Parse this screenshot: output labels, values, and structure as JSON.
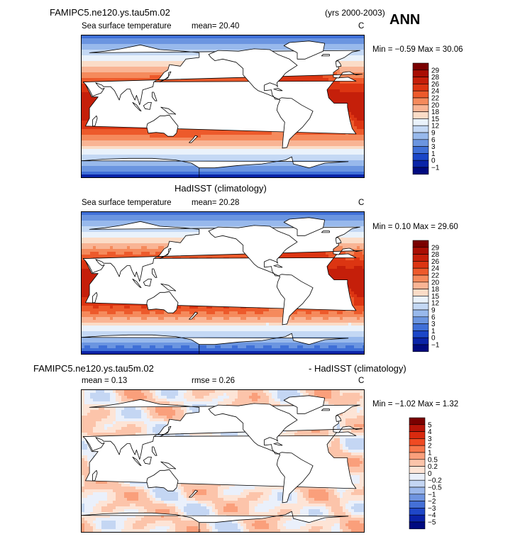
{
  "header": {
    "case_name": "FAMIPC5.ne120.ys.tau5m.02",
    "years": "(yrs 2000-2003)",
    "season": "ANN"
  },
  "panels": [
    {
      "id": "model",
      "title": "",
      "variable": "Sea surface temperature",
      "stats": "mean=   20.40",
      "units": "C",
      "minmax": "Min =   −0.59  Max =    30.06",
      "levels": [
        "29",
        "28",
        "26",
        "24",
        "22",
        "20",
        "18",
        "15",
        "12",
        "9",
        "6",
        "3",
        "1",
        "0",
        "−1"
      ],
      "colors": [
        "#7a0000",
        "#a90e04",
        "#c51f0a",
        "#dc3512",
        "#ed5a2b",
        "#f58a5c",
        "#f9b494",
        "#fbdcc7",
        "#eaf2fb",
        "#c4d8f4",
        "#98b9ec",
        "#6b95e0",
        "#3f6fd7",
        "#1b46c8",
        "#0a24a8",
        "#000a80"
      ]
    },
    {
      "id": "obs",
      "title": "HadISST (climatology)",
      "variable": "Sea surface temperature",
      "stats": "mean=   20.28",
      "units": "C",
      "minmax": "Min =    0.10  Max =    29.60",
      "levels": [
        "29",
        "28",
        "26",
        "24",
        "22",
        "20",
        "18",
        "15",
        "12",
        "9",
        "6",
        "3",
        "1",
        "0",
        "−1"
      ],
      "colors": [
        "#7a0000",
        "#a90e04",
        "#c51f0a",
        "#dc3512",
        "#ed5a2b",
        "#f58a5c",
        "#f9b494",
        "#fbdcc7",
        "#eaf2fb",
        "#c4d8f4",
        "#98b9ec",
        "#6b95e0",
        "#3f6fd7",
        "#1b46c8",
        "#0a24a8",
        "#000a80"
      ]
    },
    {
      "id": "diff",
      "title_left": "FAMIPC5.ne120.ys.tau5m.02",
      "title_right": "- HadISST (climatology)",
      "mean": "mean =    0.13",
      "rmse": "rmse =    0.26",
      "units": "C",
      "minmax": "Min =   −1.02  Max =     1.32",
      "levels": [
        "5",
        "4",
        "3",
        "2",
        "1",
        "0.5",
        "0.2",
        "0",
        "−0.2",
        "−0.5",
        "−1",
        "−2",
        "−3",
        "−4",
        "−5"
      ],
      "colors": [
        "#7a0000",
        "#b71408",
        "#d92a0f",
        "#ef4a22",
        "#f7764a",
        "#fa9f7b",
        "#fcc4aa",
        "#fde4d6",
        "#eaf0fb",
        "#c4d6f3",
        "#9cb8eb",
        "#6f94e0",
        "#4570d6",
        "#1f47c8",
        "#0a22a8",
        "#000a80"
      ]
    }
  ]
}
